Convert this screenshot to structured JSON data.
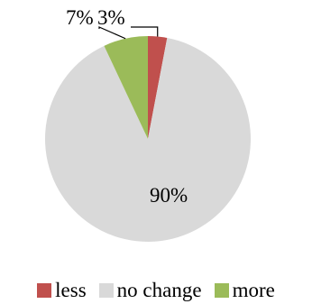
{
  "chart_data": {
    "type": "pie",
    "title": "",
    "categories": [
      "less",
      "no change",
      "more"
    ],
    "values": [
      3,
      90,
      7
    ],
    "labels": [
      "3%",
      "90%",
      "7%"
    ],
    "colors": [
      "#c0504d",
      "#d9d9d9",
      "#9bbb59"
    ],
    "start_angle_deg": 0,
    "direction": "clockwise",
    "legend_position": "bottom"
  }
}
